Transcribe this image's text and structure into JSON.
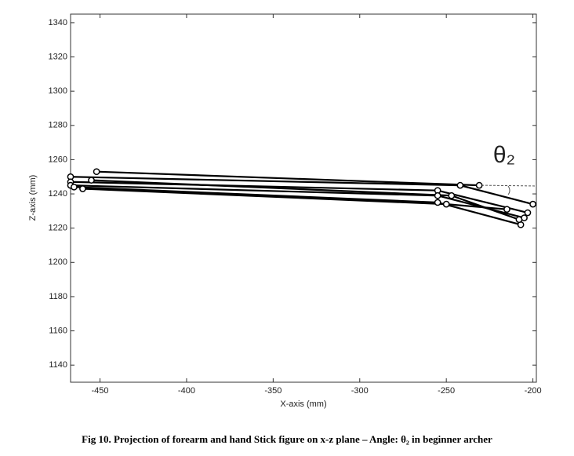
{
  "chart_data": {
    "type": "line",
    "xlabel": "X-axis (mm)",
    "ylabel": "Z-axis (mm)",
    "caption": "Fig 10. Projection of forearm and hand Stick figure on x-z plane – Angle: θ₂ in beginner archer",
    "annotation": "θ₂",
    "xlim": [
      -467,
      -198
    ],
    "ylim": [
      1130,
      1345
    ],
    "xticks": [
      -450,
      -400,
      -350,
      -300,
      -250,
      -200
    ],
    "yticks": [
      1140,
      1160,
      1180,
      1200,
      1220,
      1240,
      1260,
      1280,
      1300,
      1320,
      1340
    ],
    "color": "#000000",
    "marker_fill": "#ffffff",
    "series": [
      {
        "x": [
          -452,
          -231
        ],
        "values": [
          1253,
          1245
        ]
      },
      {
        "x": [
          -467,
          -242,
          -200
        ],
        "values": [
          1250,
          1245,
          1234
        ]
      },
      {
        "x": [
          -467,
          -255,
          -203
        ],
        "values": [
          1247,
          1242,
          1229
        ]
      },
      {
        "x": [
          -467,
          -255,
          -205
        ],
        "values": [
          1245,
          1239,
          1226
        ]
      },
      {
        "x": [
          -465,
          -255,
          -207
        ],
        "values": [
          1244,
          1235,
          1222
        ]
      },
      {
        "x": [
          -455,
          -247,
          -208
        ],
        "values": [
          1248,
          1239,
          1225
        ]
      },
      {
        "x": [
          -460,
          -250,
          -215
        ],
        "values": [
          1243,
          1234,
          1231
        ]
      }
    ]
  }
}
